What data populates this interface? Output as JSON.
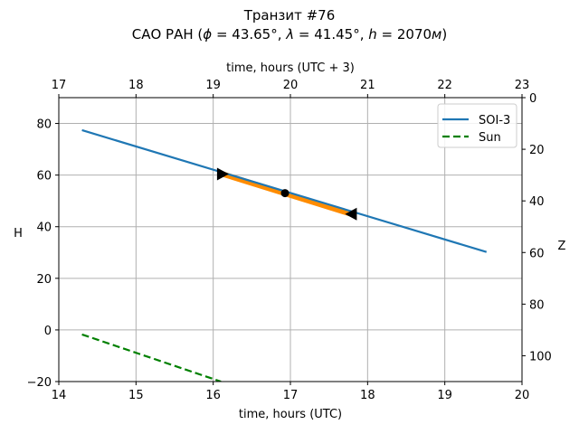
{
  "chart_data": {
    "type": "line",
    "title": "Транзит #76",
    "subtitle_parts": {
      "prefix": "САО РАН (",
      "phi": "ϕ",
      "phi_value": " = 43.65°, ",
      "lambda": "λ",
      "lambda_value": " = 41.45°, ",
      "h": "h",
      "h_value": " = 2070",
      "unit": "м",
      "suffix": ")"
    },
    "xlabel": "time, hours (UTC)",
    "xlabel_top": "time, hours (UTC + 3)",
    "ylabel": "H",
    "ylabel_right": "Z",
    "xlim": [
      14,
      20
    ],
    "ylim": [
      -20,
      90
    ],
    "ylim_right": [
      0,
      110
    ],
    "right_axis_inverted": true,
    "top_axis_offset_hours": 3,
    "grid": true,
    "legend_position": "upper right",
    "xticks": [
      "14",
      "15",
      "16",
      "17",
      "18",
      "19",
      "20"
    ],
    "xticks_values": [
      14,
      15,
      16,
      17,
      18,
      19,
      20
    ],
    "xticks_top": [
      "17",
      "18",
      "19",
      "20",
      "21",
      "22",
      "23"
    ],
    "yticks": [
      "−20",
      "0",
      "20",
      "40",
      "60",
      "80"
    ],
    "yticks_values": [
      -20,
      0,
      20,
      40,
      60,
      80
    ],
    "yticks_right": [
      "0",
      "20",
      "40",
      "60",
      "80",
      "100"
    ],
    "yticks_right_values": [
      0,
      20,
      40,
      60,
      80,
      100
    ],
    "series": [
      {
        "name": "SOI-3",
        "color": "#1f77b4",
        "style": "solid",
        "x": [
          14.3,
          19.54
        ],
        "y": [
          77.4,
          30.2
        ]
      },
      {
        "name": "Sun",
        "color": "#008000",
        "style": "dashed",
        "x": [
          14.3,
          16.1
        ],
        "y": [
          -1.75,
          -20
        ]
      }
    ],
    "highlight_segment": {
      "color": "#ff8c00",
      "x": [
        16.1,
        17.82
      ],
      "y": [
        60.6,
        44.6
      ]
    },
    "markers": [
      {
        "kind": "triangle-right",
        "x": 16.12,
        "y": 60.4,
        "color": "#000000"
      },
      {
        "kind": "circle",
        "x": 16.93,
        "y": 53.0,
        "color": "#000000"
      },
      {
        "kind": "triangle-left",
        "x": 17.79,
        "y": 44.9,
        "color": "#000000"
      }
    ],
    "legend": [
      {
        "label": "SOI-3",
        "color": "#1f77b4",
        "style": "solid"
      },
      {
        "label": "Sun",
        "color": "#008000",
        "style": "dashed"
      }
    ]
  }
}
